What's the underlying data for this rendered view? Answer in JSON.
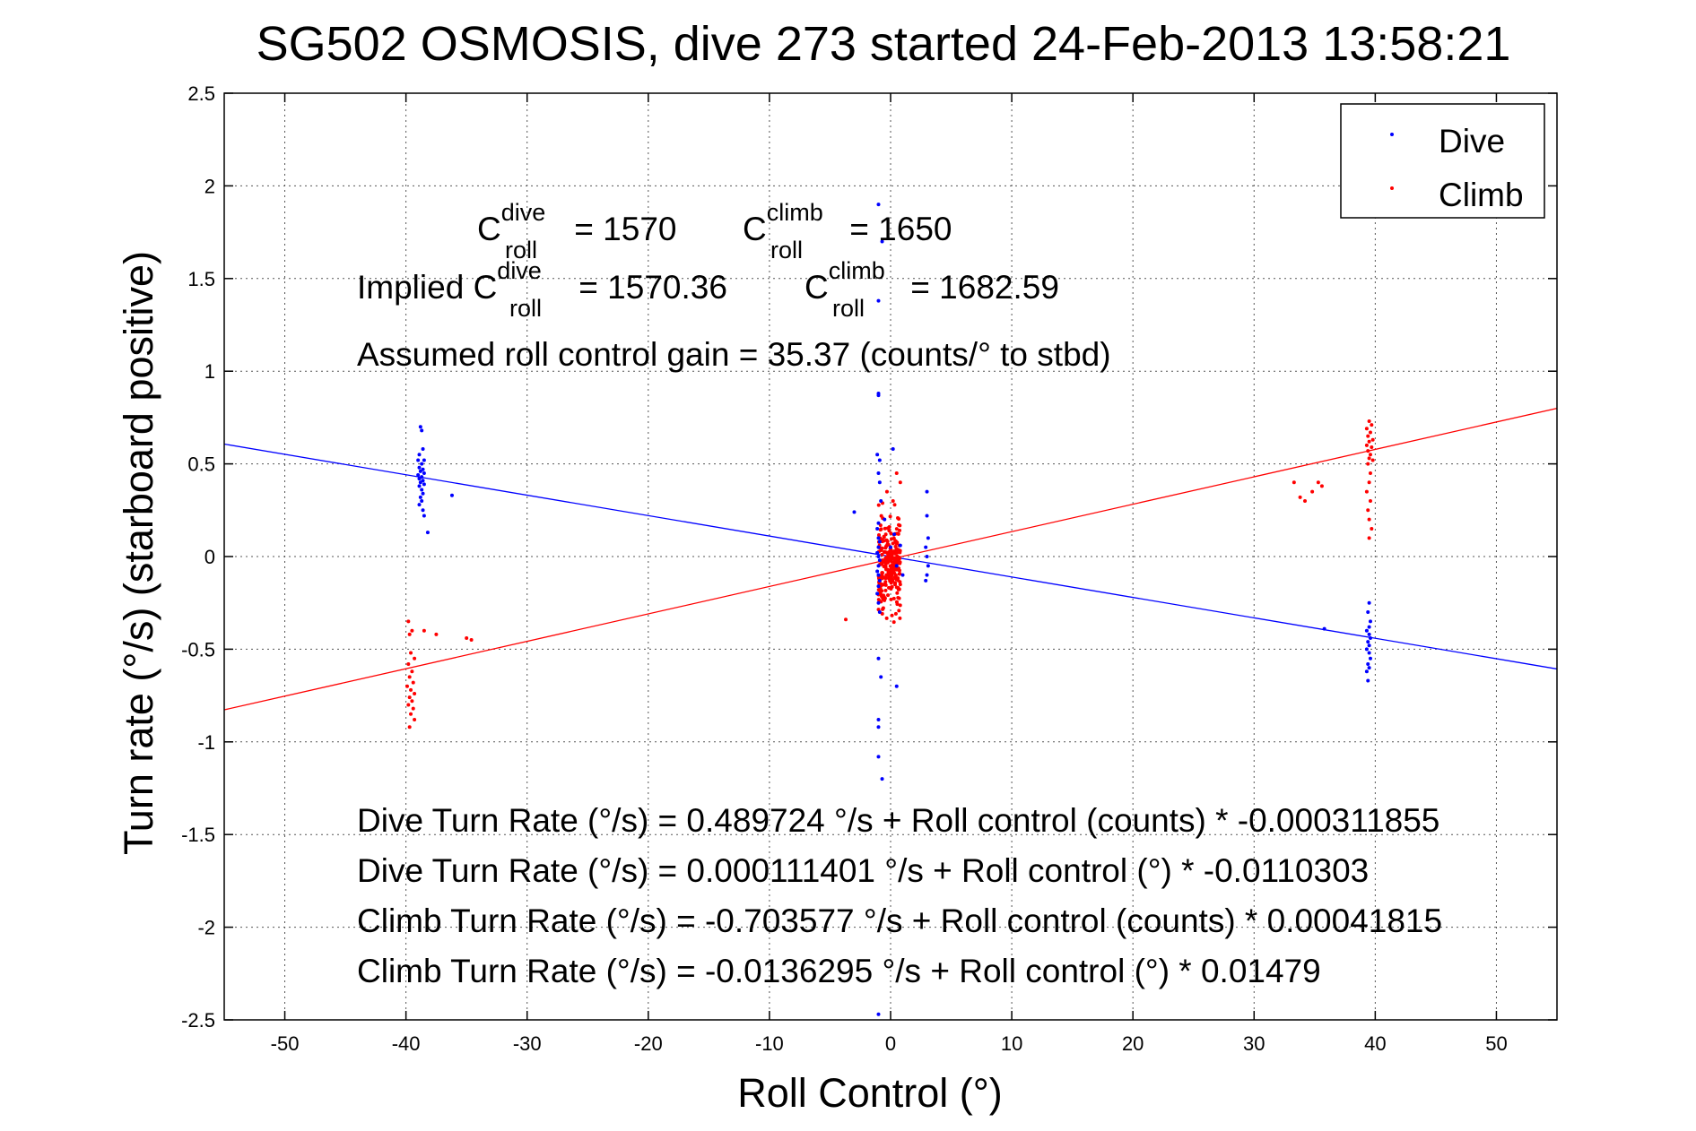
{
  "chart_data": {
    "type": "scatter",
    "title": "SG502 OSMOSIS, dive 273 started 24-Feb-2013 13:58:21",
    "xlabel": "Roll Control (°)",
    "ylabel": "Turn rate (°/s) (starboard positive)",
    "xlim": [
      -55,
      55
    ],
    "ylim": [
      -2.5,
      2.5
    ],
    "xticks": [
      -50,
      -40,
      -30,
      -20,
      -10,
      0,
      10,
      20,
      30,
      40,
      50
    ],
    "yticks": [
      -2.5,
      -2,
      -1.5,
      -1,
      -0.5,
      0,
      0.5,
      1,
      1.5,
      2,
      2.5
    ],
    "xtick_labels": [
      "-50",
      "-40",
      "-30",
      "-20",
      "-10",
      "0",
      "10",
      "20",
      "30",
      "40",
      "50"
    ],
    "ytick_labels": [
      "-2.5",
      "-2",
      "-1.5",
      "-1",
      "-0.5",
      "0",
      "0.5",
      "1",
      "1.5",
      "2",
      "2.5"
    ],
    "grid": true,
    "legend_position": "top-right",
    "series": [
      {
        "name": "Dive",
        "color": "#0000ff",
        "marker": "dot",
        "points": [
          [
            -38.8,
            0.7
          ],
          [
            -38.7,
            0.68
          ],
          [
            -38.6,
            0.58
          ],
          [
            -38.9,
            0.55
          ],
          [
            -39.0,
            0.52
          ],
          [
            -38.5,
            0.52
          ],
          [
            -38.7,
            0.5
          ],
          [
            -38.9,
            0.48
          ],
          [
            -38.6,
            0.47
          ],
          [
            -38.8,
            0.46
          ],
          [
            -38.5,
            0.45
          ],
          [
            -39.0,
            0.44
          ],
          [
            -38.7,
            0.43
          ],
          [
            -38.9,
            0.42
          ],
          [
            -38.6,
            0.41
          ],
          [
            -38.8,
            0.4
          ],
          [
            -38.5,
            0.39
          ],
          [
            -38.9,
            0.38
          ],
          [
            -38.7,
            0.36
          ],
          [
            -38.6,
            0.34
          ],
          [
            -38.8,
            0.32
          ],
          [
            -38.7,
            0.3
          ],
          [
            -38.9,
            0.28
          ],
          [
            -38.6,
            0.25
          ],
          [
            -38.5,
            0.22
          ],
          [
            -38.2,
            0.13
          ],
          [
            -36.2,
            0.33
          ],
          [
            -1.0,
            1.9
          ],
          [
            -0.7,
            1.7
          ],
          [
            -1.0,
            1.38
          ],
          [
            -1.0,
            0.88
          ],
          [
            -1.0,
            0.87
          ],
          [
            -1.1,
            0.55
          ],
          [
            0.2,
            0.58
          ],
          [
            -0.9,
            0.52
          ],
          [
            -1.0,
            0.45
          ],
          [
            -0.9,
            0.4
          ],
          [
            -0.8,
            0.3
          ],
          [
            -3.0,
            0.24
          ],
          [
            -1.0,
            0.18
          ],
          [
            -1.1,
            0.15
          ],
          [
            -1.0,
            0.1
          ],
          [
            -0.9,
            0.08
          ],
          [
            -1.0,
            0.05
          ],
          [
            -1.1,
            0.02
          ],
          [
            -1.0,
            0.0
          ],
          [
            -0.9,
            -0.02
          ],
          [
            -1.0,
            -0.05
          ],
          [
            -1.1,
            -0.08
          ],
          [
            -1.0,
            -0.1
          ],
          [
            -0.9,
            -0.13
          ],
          [
            -1.0,
            -0.16
          ],
          [
            -1.1,
            -0.2
          ],
          [
            -1.0,
            -0.25
          ],
          [
            -0.9,
            -0.3
          ],
          [
            -1.0,
            -0.55
          ],
          [
            -0.8,
            -0.65
          ],
          [
            0.5,
            -0.7
          ],
          [
            -1.0,
            -0.88
          ],
          [
            -1.0,
            -0.92
          ],
          [
            -1.0,
            -1.08
          ],
          [
            -0.7,
            -1.2
          ],
          [
            -1.0,
            -2.47
          ],
          [
            0.3,
            0.12
          ],
          [
            0.5,
            -0.05
          ],
          [
            0.8,
            0.06
          ],
          [
            1.0,
            -0.1
          ],
          [
            -0.5,
            0.2
          ],
          [
            0.0,
            0.05
          ],
          [
            3.0,
            0.35
          ],
          [
            3.0,
            0.22
          ],
          [
            3.1,
            0.1
          ],
          [
            2.9,
            0.05
          ],
          [
            3.0,
            0.0
          ],
          [
            3.1,
            -0.05
          ],
          [
            3.0,
            -0.1
          ],
          [
            2.9,
            -0.13
          ],
          [
            35.8,
            -0.39
          ],
          [
            39.5,
            -0.25
          ],
          [
            39.4,
            -0.3
          ],
          [
            39.6,
            -0.35
          ],
          [
            39.5,
            -0.38
          ],
          [
            39.3,
            -0.4
          ],
          [
            39.5,
            -0.42
          ],
          [
            39.6,
            -0.44
          ],
          [
            39.4,
            -0.46
          ],
          [
            39.5,
            -0.48
          ],
          [
            39.3,
            -0.5
          ],
          [
            39.5,
            -0.52
          ],
          [
            39.6,
            -0.55
          ],
          [
            39.4,
            -0.58
          ],
          [
            39.5,
            -0.6
          ],
          [
            39.3,
            -0.62
          ],
          [
            39.4,
            -0.67
          ]
        ]
      },
      {
        "name": "Climb",
        "color": "#ff0000",
        "marker": "dot",
        "points": [
          [
            -39.8,
            -0.35
          ],
          [
            -39.5,
            -0.4
          ],
          [
            -39.7,
            -0.42
          ],
          [
            -38.5,
            -0.4
          ],
          [
            -37.5,
            -0.42
          ],
          [
            -35.0,
            -0.44
          ],
          [
            -34.6,
            -0.45
          ],
          [
            -39.6,
            -0.52
          ],
          [
            -39.3,
            -0.55
          ],
          [
            -39.8,
            -0.58
          ],
          [
            -39.5,
            -0.62
          ],
          [
            -39.7,
            -0.65
          ],
          [
            -39.4,
            -0.68
          ],
          [
            -39.9,
            -0.7
          ],
          [
            -39.6,
            -0.72
          ],
          [
            -39.3,
            -0.74
          ],
          [
            -39.7,
            -0.76
          ],
          [
            -39.5,
            -0.78
          ],
          [
            -39.8,
            -0.8
          ],
          [
            -39.4,
            -0.82
          ],
          [
            -39.6,
            -0.85
          ],
          [
            -39.3,
            -0.88
          ],
          [
            -39.7,
            -0.92
          ],
          [
            -3.7,
            -0.34
          ],
          [
            -0.3,
            0.35
          ],
          [
            0.8,
            0.4
          ],
          [
            0.5,
            0.45
          ],
          [
            0.2,
            0.3
          ],
          [
            33.3,
            0.4
          ],
          [
            33.8,
            0.32
          ],
          [
            34.2,
            0.3
          ],
          [
            34.8,
            0.35
          ],
          [
            35.3,
            0.4
          ],
          [
            35.6,
            0.38
          ],
          [
            39.5,
            0.73
          ],
          [
            39.7,
            0.71
          ],
          [
            39.3,
            0.69
          ],
          [
            39.6,
            0.67
          ],
          [
            39.4,
            0.65
          ],
          [
            39.8,
            0.63
          ],
          [
            39.5,
            0.62
          ],
          [
            39.3,
            0.6
          ],
          [
            39.7,
            0.59
          ],
          [
            39.4,
            0.57
          ],
          [
            39.6,
            0.55
          ],
          [
            39.5,
            0.53
          ],
          [
            39.8,
            0.52
          ],
          [
            39.4,
            0.5
          ],
          [
            39.6,
            0.45
          ],
          [
            39.5,
            0.4
          ],
          [
            39.3,
            0.35
          ],
          [
            39.6,
            0.3
          ],
          [
            39.4,
            0.25
          ],
          [
            39.5,
            0.2
          ],
          [
            39.7,
            0.15
          ],
          [
            39.5,
            0.1
          ]
        ],
        "cluster": {
          "x_center": -0.1,
          "x_spread": 0.9,
          "y_min": -0.42,
          "y_max": 0.32,
          "count": 260
        }
      }
    ],
    "fit_lines": [
      {
        "name": "Dive",
        "color": "#0000ff",
        "intercept": 0.000111401,
        "slope": -0.0110303
      },
      {
        "name": "Climb",
        "color": "#ff0000",
        "intercept": -0.0136295,
        "slope": 0.01479
      }
    ],
    "annotations": {
      "c_roll_dive": {
        "lead": "",
        "base": "C",
        "sup": "dive",
        "sub": "roll",
        "tail": " = 1570"
      },
      "c_roll_climb": {
        "lead": "",
        "base": "C",
        "sup": "climb",
        "sub": "roll",
        "tail": " = 1650"
      },
      "implied_dive": {
        "lead": "Implied ",
        "base": "C",
        "sup": "dive",
        "sub": "roll",
        "tail": " = 1570.36"
      },
      "implied_climb": {
        "lead": "",
        "base": "C",
        "sup": "climb",
        "sub": "roll",
        "tail": " = 1682.59"
      },
      "gain": "Assumed roll control gain = 35.37 (counts/° to stbd)",
      "eq_dive_counts": "Dive Turn Rate (°/s) = 0.489724 °/s + Roll control (counts) * -0.000311855",
      "eq_dive_deg": "Dive Turn Rate (°/s) = 0.000111401 °/s + Roll control (°) * -0.0110303",
      "eq_climb_counts": "Climb Turn Rate (°/s) = -0.703577 °/s + Roll control (counts) * 0.00041815",
      "eq_climb_deg": "Climb Turn Rate (°/s) = -0.0136295 °/s + Roll control (°) * 0.01479"
    }
  }
}
